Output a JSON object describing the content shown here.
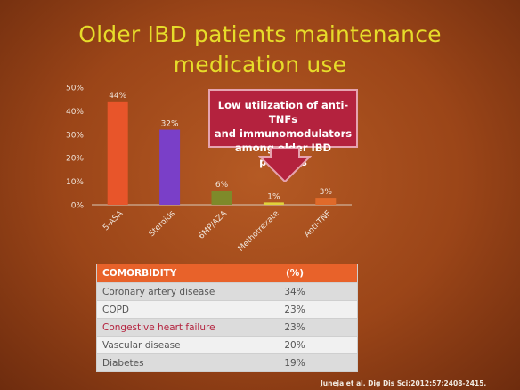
{
  "title": {
    "line1": "Older IBD patients maintenance",
    "line2": "medication use"
  },
  "colors": {
    "background": "#9b4518",
    "title": "#e6dc2a",
    "callout": "#b4223e",
    "table_header": "#e8622a"
  },
  "chart_data": {
    "type": "bar",
    "categories": [
      "5-ASA",
      "Steroids",
      "6MP/AZA",
      "Methotrexate",
      "Anti-TNF"
    ],
    "values": [
      44,
      32,
      6,
      1,
      3
    ],
    "value_labels": [
      "44%",
      "32%",
      "6%",
      "1%",
      "3%"
    ],
    "bar_colors": [
      "#e8552a",
      "#7a3fc8",
      "#7e8a2a",
      "#e0d23c",
      "#e06a2a"
    ],
    "ylim": [
      0,
      50
    ],
    "yticks": [
      "0%",
      "10%",
      "20%",
      "30%",
      "40%",
      "50%"
    ],
    "title": "",
    "xlabel": "",
    "ylabel": "",
    "grid": false
  },
  "callout": {
    "line1": "Low utilization of anti-TNFs",
    "line2": "and immunomodulators",
    "line3": "among older IBD patients"
  },
  "table": {
    "headers": [
      "COMORBIDITY",
      "(%)"
    ],
    "rows": [
      {
        "condition": "Coronary artery disease",
        "pct": "34%"
      },
      {
        "condition": "COPD",
        "pct": "23%"
      },
      {
        "condition": "Congestive heart failure",
        "pct": "23%"
      },
      {
        "condition": "Vascular disease",
        "pct": "20%"
      },
      {
        "condition": "Diabetes",
        "pct": "19%"
      }
    ]
  },
  "citation": "Juneja et al. Dig Dis Sci;2012:57:2408-2415."
}
